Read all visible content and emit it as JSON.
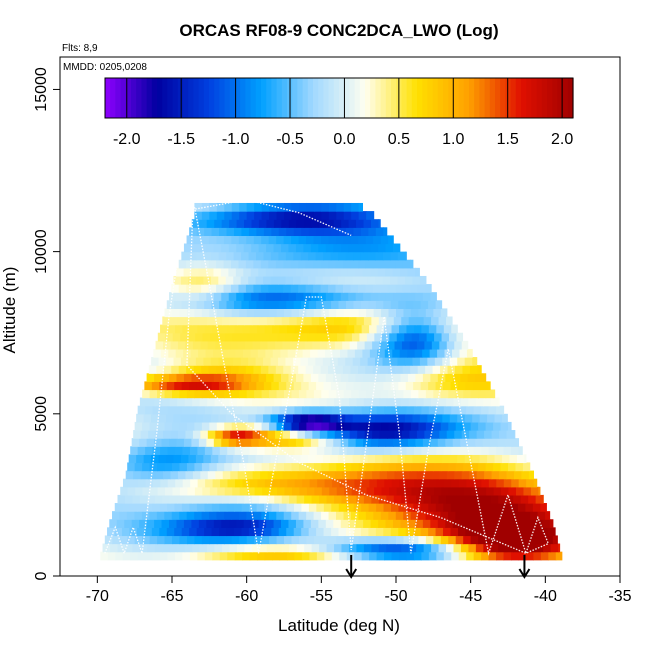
{
  "chart_data": {
    "type": "heatmap",
    "title": "ORCAS RF08-9 CONC2DCA_LWO (Log)",
    "flights_note": "Flts: 8,9",
    "mmdd_note": "MMDD: 0205,0208",
    "xlabel": "Latitude (deg N)",
    "ylabel": "Altitude (m)",
    "xlim": [
      -72.5,
      -35
    ],
    "ylim": [
      0,
      16000
    ],
    "x_ticks": [
      "-70",
      "-65",
      "-60",
      "-55",
      "-50",
      "-45",
      "-40",
      "-35"
    ],
    "y_ticks": [
      "0",
      "5000",
      "10000",
      "15000"
    ],
    "colorbar": {
      "range": [
        -2.2,
        2.1
      ],
      "ticks": [
        "-2.0",
        "-1.5",
        "-1.0",
        "-0.5",
        "0.0",
        "0.5",
        "1.0",
        "1.5",
        "2.0"
      ],
      "colors": [
        "#8f00ff",
        "#0000a0",
        "#0040e0",
        "#00a0ff",
        "#a0d8ff",
        "#fffff0",
        "#ffe000",
        "#ffa000",
        "#e01000",
        "#a00000"
      ]
    },
    "envelope": {
      "altitude": [
        500,
        1500,
        3000,
        5000,
        7000,
        9000,
        11000,
        11500
      ],
      "lat_min": [
        -69.8,
        -69.2,
        -68.1,
        -67.3,
        -66.1,
        -64.9,
        -63.5,
        -63.5
      ],
      "lat_max": [
        -38.9,
        -39.5,
        -40.8,
        -42.8,
        -45.2,
        -48.0,
        -51.5,
        -53.0
      ]
    },
    "features": [
      {
        "lat": -45.0,
        "alt": 2000,
        "lat_w": 8.0,
        "alt_w": 1300,
        "value": 1.9
      },
      {
        "lat": -42.5,
        "alt": 1000,
        "lat_w": 4.0,
        "alt_w": 700,
        "value": 2.0
      },
      {
        "lat": -55.0,
        "alt": 2800,
        "lat_w": 8.0,
        "alt_w": 700,
        "value": 1.3
      },
      {
        "lat": -60.5,
        "alt": 1500,
        "lat_w": 5.0,
        "alt_w": 500,
        "value": -1.7
      },
      {
        "lat": -51.0,
        "alt": 4500,
        "lat_w": 5.0,
        "alt_w": 600,
        "value": -2.0
      },
      {
        "lat": -57.0,
        "alt": 4300,
        "lat_w": 3.5,
        "alt_w": 400,
        "value": 1.5
      },
      {
        "lat": -60.8,
        "alt": 4300,
        "lat_w": 2.0,
        "alt_w": 300,
        "value": 1.6
      },
      {
        "lat": -56.0,
        "alt": 4700,
        "lat_w": 2.5,
        "alt_w": 350,
        "value": -2.1
      },
      {
        "lat": -48.8,
        "alt": 7400,
        "lat_w": 3.0,
        "alt_w": 900,
        "value": -1.8
      },
      {
        "lat": -54.0,
        "alt": 7700,
        "lat_w": 9.0,
        "alt_w": 800,
        "value": 1.1
      },
      {
        "lat": -57.0,
        "alt": 8500,
        "lat_w": 9.0,
        "alt_w": 500,
        "value": -1.2
      },
      {
        "lat": -57.5,
        "alt": 11000,
        "lat_w": 7.0,
        "alt_w": 500,
        "value": -1.6
      },
      {
        "lat": -55.0,
        "alt": 10000,
        "lat_w": 7.0,
        "alt_w": 700,
        "value": -0.9
      },
      {
        "lat": -62.0,
        "alt": 6000,
        "lat_w": 4.0,
        "alt_w": 500,
        "value": 0.9
      },
      {
        "lat": -65.0,
        "alt": 5900,
        "lat_w": 4.0,
        "alt_w": 300,
        "value": 1.2
      },
      {
        "lat": -65.5,
        "alt": 3500,
        "lat_w": 4.0,
        "alt_w": 700,
        "value": -1.1
      },
      {
        "lat": -58.0,
        "alt": 600,
        "lat_w": 7.0,
        "alt_w": 400,
        "value": 1.0
      },
      {
        "lat": -50.0,
        "alt": 800,
        "lat_w": 6.0,
        "alt_w": 400,
        "value": -1.9
      },
      {
        "lat": -46.0,
        "alt": 6000,
        "lat_w": 5.0,
        "alt_w": 700,
        "value": 0.9
      },
      {
        "lat": -63.0,
        "alt": 9000,
        "lat_w": 3.0,
        "alt_w": 700,
        "value": 0.9
      },
      {
        "lat": -60.0,
        "alt": 2200,
        "lat_w": 5.0,
        "alt_w": 500,
        "value": -0.8
      }
    ],
    "flight_track": [
      [
        -69.5,
        700
      ],
      [
        -68.8,
        1500
      ],
      [
        -68.2,
        700
      ],
      [
        -67.6,
        1500
      ],
      [
        -67.0,
        700
      ],
      [
        -66.0,
        4500
      ],
      [
        -65.2,
        8000
      ],
      [
        -64.2,
        11000
      ],
      [
        -63.5,
        11400
      ],
      [
        -62.5,
        9000
      ],
      [
        -61.5,
        6500
      ],
      [
        -60.2,
        3500
      ],
      [
        -59.2,
        700
      ],
      [
        -58.3,
        3000
      ],
      [
        -57.0,
        6000
      ],
      [
        -56.0,
        8600
      ],
      [
        -55.0,
        8600
      ],
      [
        -53.8,
        5500
      ],
      [
        -53.0,
        800
      ],
      [
        -52.0,
        4000
      ],
      [
        -50.8,
        8000
      ],
      [
        -49.8,
        4500
      ],
      [
        -49.0,
        700
      ],
      [
        -47.8,
        4000
      ],
      [
        -46.5,
        7000
      ],
      [
        -45.0,
        3500
      ],
      [
        -43.8,
        700
      ],
      [
        -42.5,
        2500
      ],
      [
        -41.3,
        700
      ],
      [
        -40.5,
        1800
      ],
      [
        -39.8,
        1000
      ],
      [
        -41.3,
        700
      ],
      [
        -47.0,
        1800
      ],
      [
        -52.0,
        2500
      ],
      [
        -56.5,
        3500
      ],
      [
        -61.0,
        5000
      ],
      [
        -64.0,
        6500
      ],
      [
        -63.6,
        11300
      ],
      [
        -60.0,
        11600
      ],
      [
        -56.5,
        11200
      ],
      [
        -53.0,
        10500
      ]
    ],
    "arrows_lat": [
      -53,
      -41.4
    ]
  }
}
